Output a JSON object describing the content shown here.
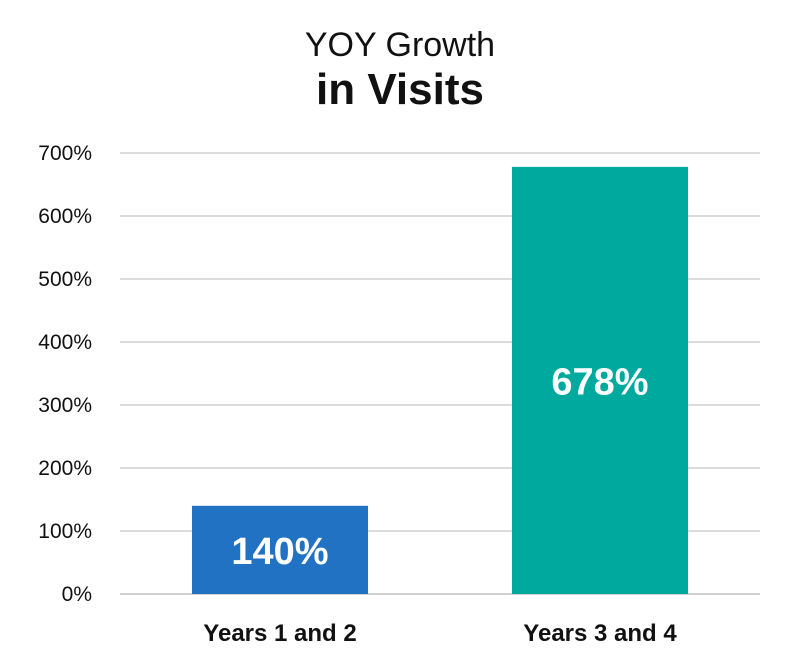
{
  "chart_data": {
    "type": "bar",
    "title": "YOY Growth",
    "subtitle": "in Visits",
    "categories": [
      "Years 1 and 2",
      "Years 3 and 4"
    ],
    "values": [
      140,
      678
    ],
    "data_labels": [
      "140%",
      "678%"
    ],
    "bar_colors": [
      "#2272c3",
      "#00a99d"
    ],
    "ylim": [
      0,
      700
    ],
    "yticks": [
      0,
      100,
      200,
      300,
      400,
      500,
      600,
      700
    ],
    "ytick_labels": [
      "0%",
      "100%",
      "200%",
      "300%",
      "400%",
      "500%",
      "600%",
      "700%"
    ],
    "grid": true,
    "legend": "none"
  }
}
